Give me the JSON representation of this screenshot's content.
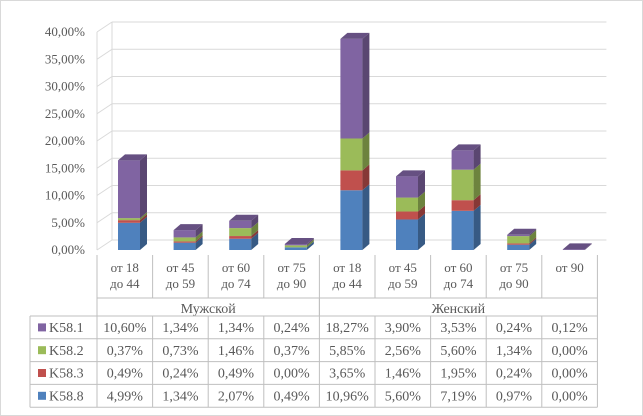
{
  "chart_data": {
    "type": "bar",
    "stacked": true,
    "style": "3d-column-with-data-table",
    "ylim": [
      0,
      40
    ],
    "yticks": [
      "0,00%",
      "5,00%",
      "10,00%",
      "15,00%",
      "20,00%",
      "25,00%",
      "30,00%",
      "35,00%",
      "40,00%"
    ],
    "ytick_values": [
      0,
      5,
      10,
      15,
      20,
      25,
      30,
      35,
      40
    ],
    "grid": true,
    "groups": [
      {
        "name": "Мужской",
        "span": 4
      },
      {
        "name": "Женский",
        "span": 5
      }
    ],
    "categories": [
      [
        "от 18",
        "до 44"
      ],
      [
        "от 45",
        "до 59"
      ],
      [
        "от 60",
        "до 74"
      ],
      [
        "от 75",
        "до 90"
      ],
      [
        "от 18",
        "до 44"
      ],
      [
        "от 45",
        "до 59"
      ],
      [
        "от 60",
        "до 74"
      ],
      [
        "от 75",
        "до 90"
      ],
      [
        "от 90"
      ]
    ],
    "series": [
      {
        "name": "K58.8",
        "color": "#4F81BD",
        "values": [
          4.99,
          1.34,
          2.07,
          0.49,
          10.96,
          5.6,
          7.19,
          0.97,
          0.0
        ],
        "labels": [
          "4,99%",
          "1,34%",
          "2,07%",
          "0,49%",
          "10,96%",
          "5,60%",
          "7,19%",
          "0,97%",
          "0,00%"
        ]
      },
      {
        "name": "K58.3",
        "color": "#C0504D",
        "values": [
          0.49,
          0.24,
          0.49,
          0.0,
          3.65,
          1.46,
          1.95,
          0.24,
          0.0
        ],
        "labels": [
          "0,49%",
          "0,24%",
          "0,49%",
          "0,00%",
          "3,65%",
          "1,46%",
          "1,95%",
          "0,24%",
          "0,00%"
        ]
      },
      {
        "name": "K58.2",
        "color": "#9BBB59",
        "values": [
          0.37,
          0.73,
          1.46,
          0.37,
          5.85,
          2.56,
          5.6,
          1.34,
          0.0
        ],
        "labels": [
          "0,37%",
          "0,73%",
          "1,46%",
          "0,37%",
          "5,85%",
          "2,56%",
          "5,60%",
          "1,34%",
          "0,00%"
        ]
      },
      {
        "name": "K58.1",
        "color": "#8064A2",
        "values": [
          10.6,
          1.34,
          1.34,
          0.24,
          18.27,
          3.9,
          3.53,
          0.24,
          0.12
        ],
        "labels": [
          "10,60%",
          "1,34%",
          "1,34%",
          "0,24%",
          "18,27%",
          "3,90%",
          "3,53%",
          "0,24%",
          "0,12%"
        ]
      }
    ],
    "table_row_order": [
      "K58.1",
      "K58.2",
      "K58.3",
      "K58.8"
    ]
  }
}
